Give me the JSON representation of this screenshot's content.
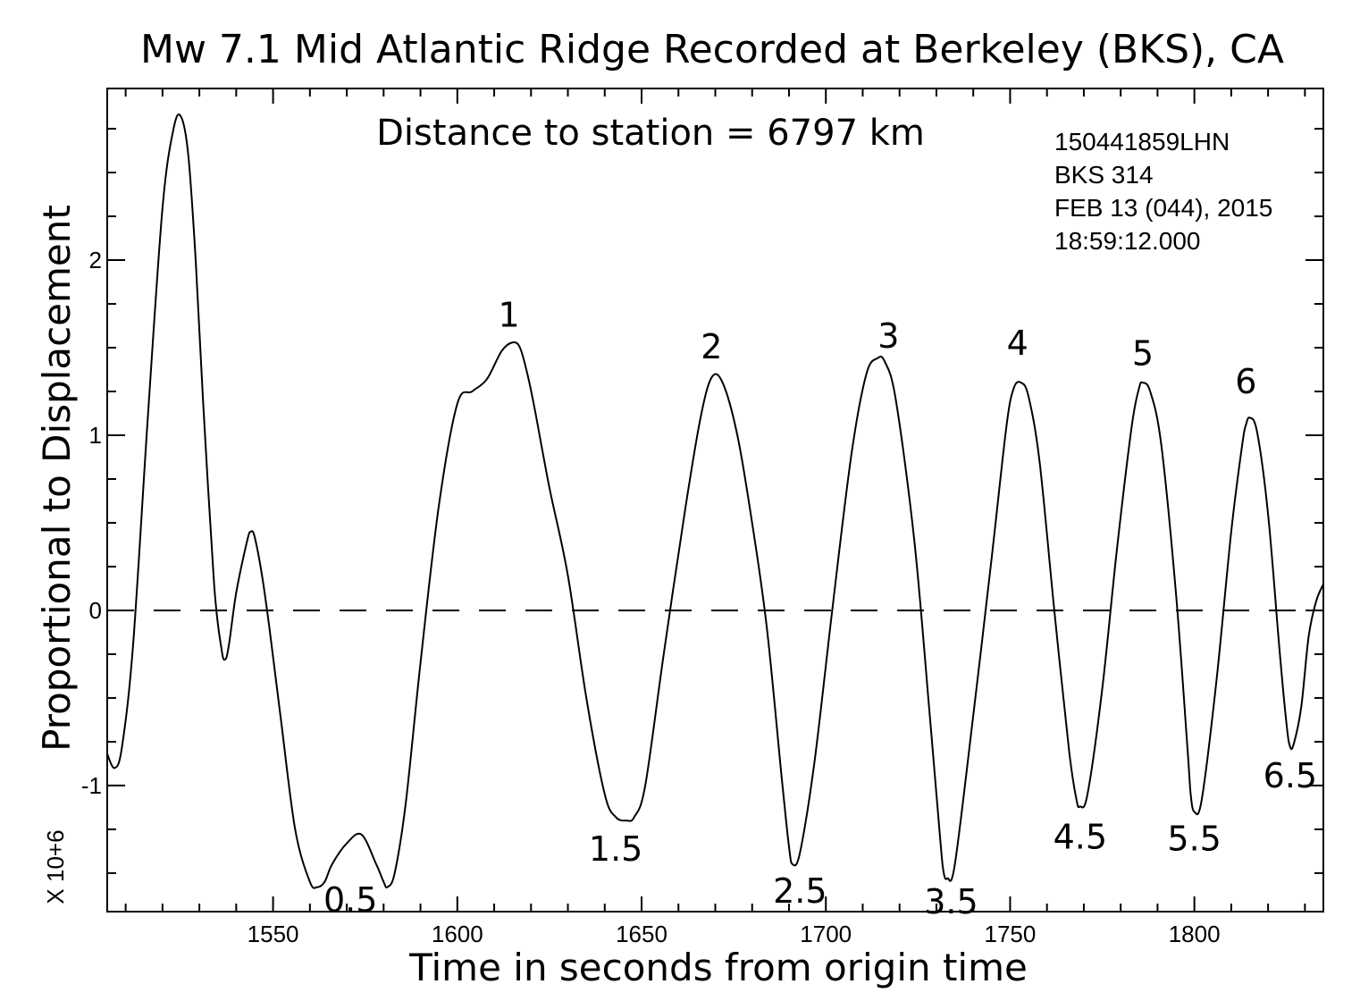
{
  "chart_data": {
    "type": "line",
    "title": "Mw 7.1 Mid Atlantic Ridge Recorded at Berkeley (BKS), CA",
    "subtitle": "Distance to station = 6797 km",
    "xlabel": "Time in seconds from origin time",
    "ylabel": "Proportional to Displacement",
    "y_scale_label": "X 10+6",
    "xlim": [
      1505,
      1835
    ],
    "ylim": [
      -1.72,
      2.98
    ],
    "x_ticks": [
      1550,
      1600,
      1650,
      1700,
      1750,
      1800
    ],
    "y_ticks": [
      -1,
      0,
      1,
      2
    ],
    "x_tick_labels": [
      "1550",
      "1600",
      "1650",
      "1700",
      "1750",
      "1800"
    ],
    "y_tick_labels": [
      "-1",
      "0",
      "1",
      "2"
    ],
    "grid": false,
    "zero_line": "dashed",
    "info_lines": [
      "150441859LHN",
      "BKS  314",
      "FEB 13 (044), 2015",
      "18:59:12.000"
    ],
    "series": [
      {
        "x": [
          1505,
          1507,
          1509,
          1512,
          1516,
          1520,
          1523,
          1525,
          1527,
          1529,
          1531,
          1534,
          1536,
          1537,
          1538,
          1540,
          1543,
          1544,
          1545,
          1547,
          1549,
          1552,
          1556,
          1560,
          1562,
          1564,
          1566,
          1570,
          1574,
          1578,
          1580,
          1581,
          1583,
          1586,
          1590,
          1595,
          1600,
          1604,
          1608,
          1612,
          1615,
          1617,
          1619,
          1621,
          1625,
          1630,
          1635,
          1640,
          1643,
          1646,
          1648,
          1651,
          1656,
          1662,
          1666,
          1669,
          1672,
          1676,
          1680,
          1684,
          1688,
          1690,
          1691,
          1693,
          1697,
          1702,
          1707,
          1711,
          1714,
          1716,
          1719,
          1724,
          1728,
          1731,
          1732,
          1733,
          1735,
          1740,
          1745,
          1749,
          1751,
          1753,
          1755,
          1758,
          1762,
          1766,
          1768,
          1769,
          1771,
          1775,
          1779,
          1783,
          1785,
          1786,
          1788,
          1791,
          1795,
          1798,
          1799,
          1800,
          1802,
          1806,
          1810,
          1813,
          1814,
          1815,
          1817,
          1820,
          1823,
          1825,
          1826,
          1827,
          1829,
          1831,
          1833,
          1835
        ],
        "y": [
          -0.82,
          -0.9,
          -0.78,
          -0.2,
          1.1,
          2.3,
          2.75,
          2.82,
          2.6,
          2.0,
          1.2,
          0.15,
          -0.22,
          -0.28,
          -0.2,
          0.1,
          0.4,
          0.45,
          0.42,
          0.2,
          -0.1,
          -0.6,
          -1.25,
          -1.55,
          -1.58,
          -1.55,
          -1.45,
          -1.33,
          -1.28,
          -1.45,
          -1.55,
          -1.58,
          -1.5,
          -1.1,
          -0.3,
          0.6,
          1.18,
          1.25,
          1.32,
          1.48,
          1.53,
          1.5,
          1.35,
          1.15,
          0.7,
          0.2,
          -0.5,
          -1.05,
          -1.18,
          -1.2,
          -1.18,
          -1.0,
          -0.25,
          0.6,
          1.1,
          1.33,
          1.3,
          1.0,
          0.5,
          -0.1,
          -0.95,
          -1.35,
          -1.45,
          -1.38,
          -0.85,
          0.05,
          0.9,
          1.35,
          1.44,
          1.42,
          1.2,
          0.4,
          -0.55,
          -1.3,
          -1.5,
          -1.53,
          -1.45,
          -0.6,
          0.3,
          1.05,
          1.27,
          1.3,
          1.22,
          0.85,
          0.0,
          -0.8,
          -1.08,
          -1.12,
          -1.05,
          -0.45,
          0.35,
          1.05,
          1.27,
          1.3,
          1.25,
          0.95,
          0.1,
          -0.75,
          -1.05,
          -1.15,
          -1.08,
          -0.4,
          0.45,
          0.95,
          1.06,
          1.1,
          1.02,
          0.55,
          -0.2,
          -0.65,
          -0.78,
          -0.76,
          -0.55,
          -0.15,
          0.05,
          0.15
        ]
      }
    ],
    "annotations": [
      {
        "text": "1",
        "x": 1614,
        "y": 1.62
      },
      {
        "text": "2",
        "x": 1669,
        "y": 1.44
      },
      {
        "text": "3",
        "x": 1717,
        "y": 1.5
      },
      {
        "text": "4",
        "x": 1752,
        "y": 1.46
      },
      {
        "text": "5",
        "x": 1786,
        "y": 1.4
      },
      {
        "text": "6",
        "x": 1814,
        "y": 1.24
      },
      {
        "text": "0.5",
        "x": 1571,
        "y": -1.72
      },
      {
        "text": "1.5",
        "x": 1643,
        "y": -1.43
      },
      {
        "text": "2.5",
        "x": 1693,
        "y": -1.67
      },
      {
        "text": "3.5",
        "x": 1734,
        "y": -1.73
      },
      {
        "text": "4.5",
        "x": 1769,
        "y": -1.36
      },
      {
        "text": "5.5",
        "x": 1800,
        "y": -1.37
      },
      {
        "text": "6.5",
        "x": 1826,
        "y": -1.01
      }
    ]
  }
}
